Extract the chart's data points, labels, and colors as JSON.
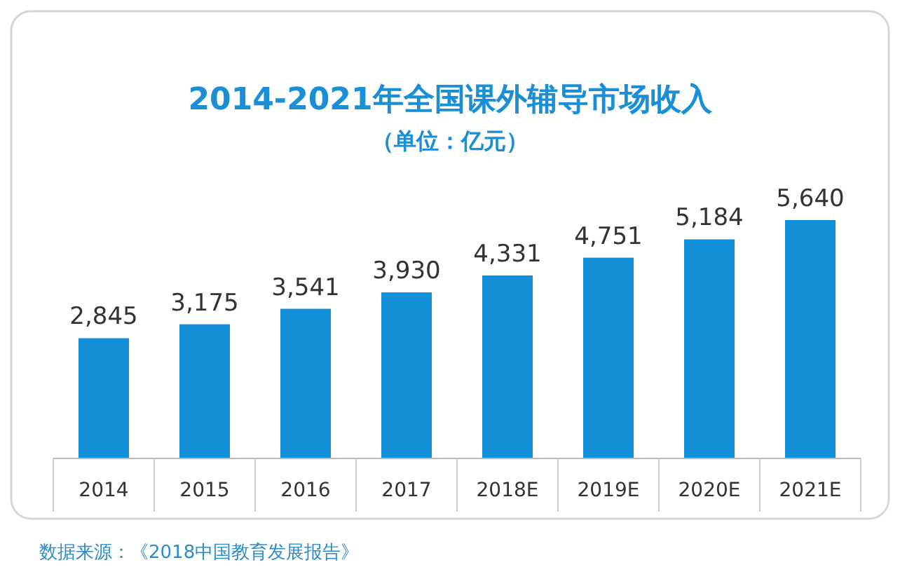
{
  "chart_data": {
    "type": "bar",
    "title": "2014-2021年全国课外辅导市场收入",
    "subtitle": "（单位：亿元）",
    "categories": [
      "2014",
      "2015",
      "2016",
      "2017",
      "2018E",
      "2019E",
      "2020E",
      "2021E"
    ],
    "values": [
      2845,
      3175,
      3541,
      3930,
      4331,
      4751,
      5184,
      5640
    ],
    "value_labels": [
      "2,845",
      "3,175",
      "3,541",
      "3,930",
      "4,331",
      "4,751",
      "5,184",
      "5,640"
    ],
    "color": "#118fd9",
    "annotations": [
      "数据来源：《2018中国教育发展报告》"
    ]
  }
}
